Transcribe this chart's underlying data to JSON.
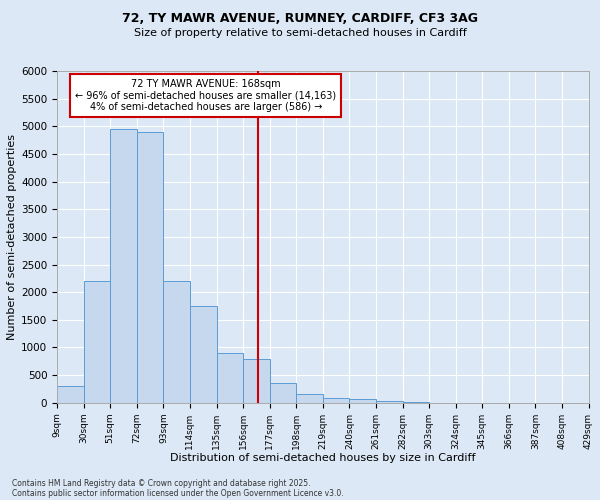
{
  "title_line1": "72, TY MAWR AVENUE, RUMNEY, CARDIFF, CF3 3AG",
  "title_line2": "Size of property relative to semi-detached houses in Cardiff",
  "xlabel": "Distribution of semi-detached houses by size in Cardiff",
  "ylabel": "Number of semi-detached properties",
  "footer_line1": "Contains HM Land Registry data © Crown copyright and database right 2025.",
  "footer_line2": "Contains public sector information licensed under the Open Government Licence v3.0.",
  "annotation_title": "72 TY MAWR AVENUE: 168sqm",
  "annotation_line1": "← 96% of semi-detached houses are smaller (14,163)",
  "annotation_line2": "4% of semi-detached houses are larger (586) →",
  "property_size": 168,
  "bar_color": "#c5d8ed",
  "bar_edge_color": "#5b9bd5",
  "vline_color": "#cc0000",
  "annotation_box_color": "#cc0000",
  "background_color": "#dce8f5",
  "grid_color": "#ffffff",
  "ylim": [
    0,
    6000
  ],
  "yticks": [
    0,
    500,
    1000,
    1500,
    2000,
    2500,
    3000,
    3500,
    4000,
    4500,
    5000,
    5500,
    6000
  ],
  "bin_edges": [
    9,
    30,
    51,
    72,
    93,
    114,
    135,
    156,
    177,
    198,
    219,
    240,
    261,
    282,
    303,
    324,
    345,
    366,
    387,
    408,
    429
  ],
  "bin_labels": [
    "9sqm",
    "30sqm",
    "51sqm",
    "72sqm",
    "93sqm",
    "114sqm",
    "135sqm",
    "156sqm",
    "177sqm",
    "198sqm",
    "219sqm",
    "240sqm",
    "261sqm",
    "282sqm",
    "303sqm",
    "324sqm",
    "345sqm",
    "366sqm",
    "387sqm",
    "408sqm",
    "429sqm"
  ],
  "counts": [
    300,
    2200,
    4950,
    4900,
    2200,
    1750,
    900,
    800,
    350,
    150,
    80,
    60,
    30,
    10,
    0,
    0,
    0,
    0,
    0,
    0
  ]
}
